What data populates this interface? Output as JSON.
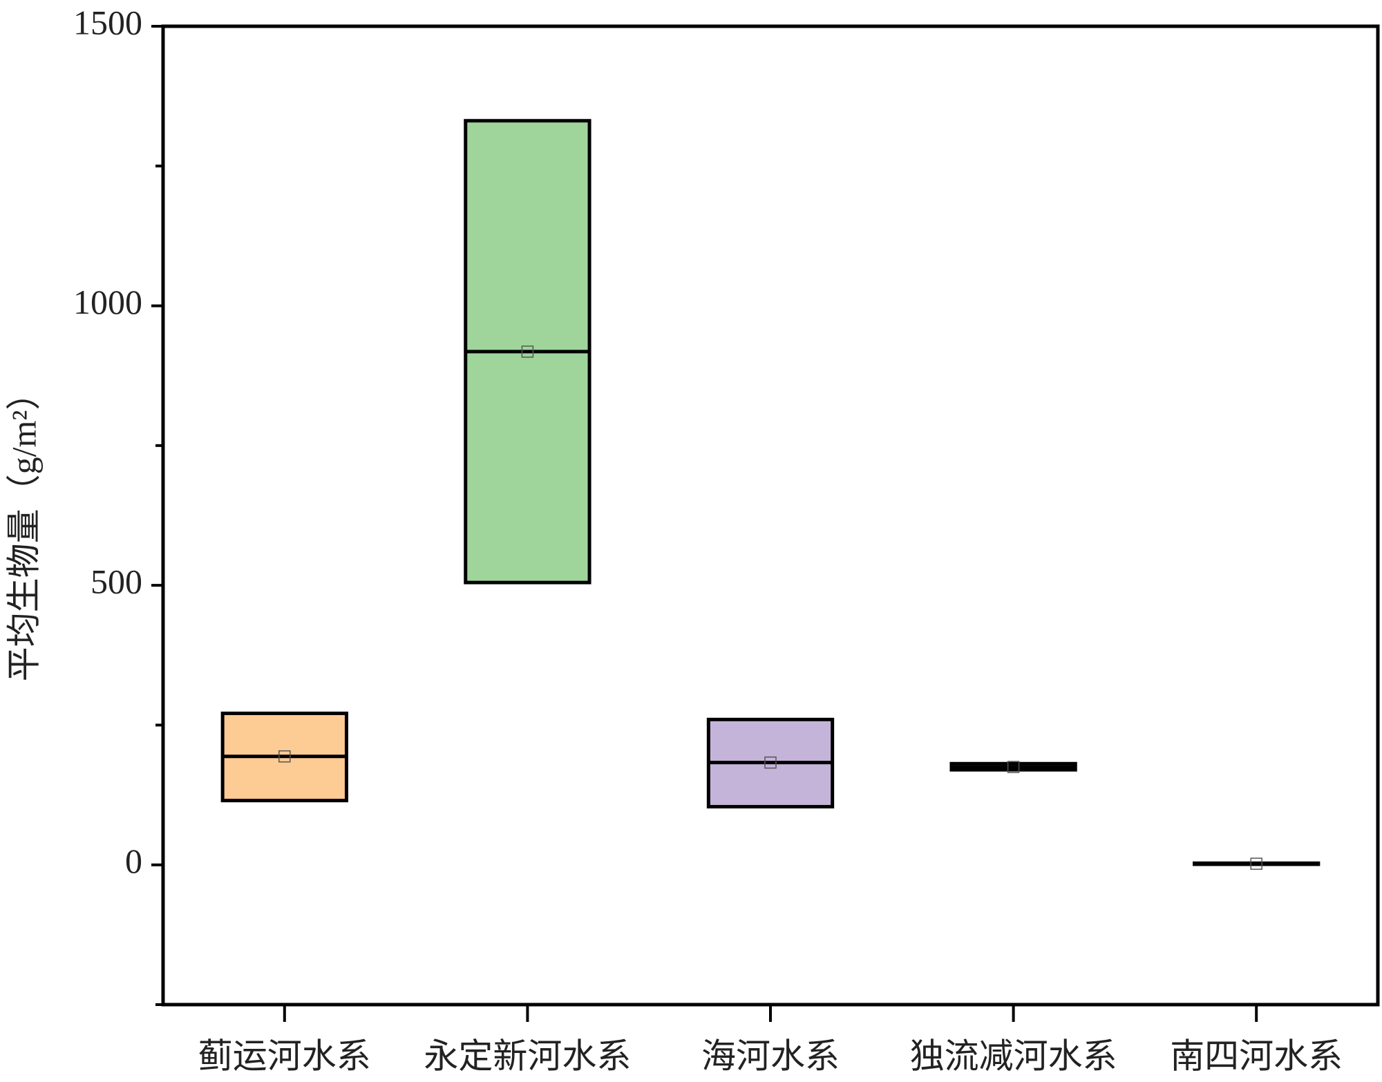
{
  "chart_data": {
    "type": "box",
    "y_label": "平均生物量（g/m²）",
    "categories": [
      "蓟运河水系",
      "永定新河水系",
      "海河水系",
      "独流减河水系",
      "南四河水系"
    ],
    "q1": [
      115,
      505,
      104,
      170,
      1
    ],
    "median": [
      194,
      918,
      183,
      175,
      2
    ],
    "q3": [
      271,
      1331,
      260,
      181,
      3
    ],
    "mean": [
      194,
      918,
      183,
      175,
      2
    ],
    "colors": [
      "#fdcb94",
      "#9fd59b",
      "#c5b4d9",
      "#a9c6e8",
      "#f4b6b6"
    ],
    "ylim": [
      -250,
      1500
    ],
    "yticks": [
      0,
      500,
      1000,
      1500
    ],
    "yminor": [
      -250,
      250,
      750,
      1250
    ]
  }
}
